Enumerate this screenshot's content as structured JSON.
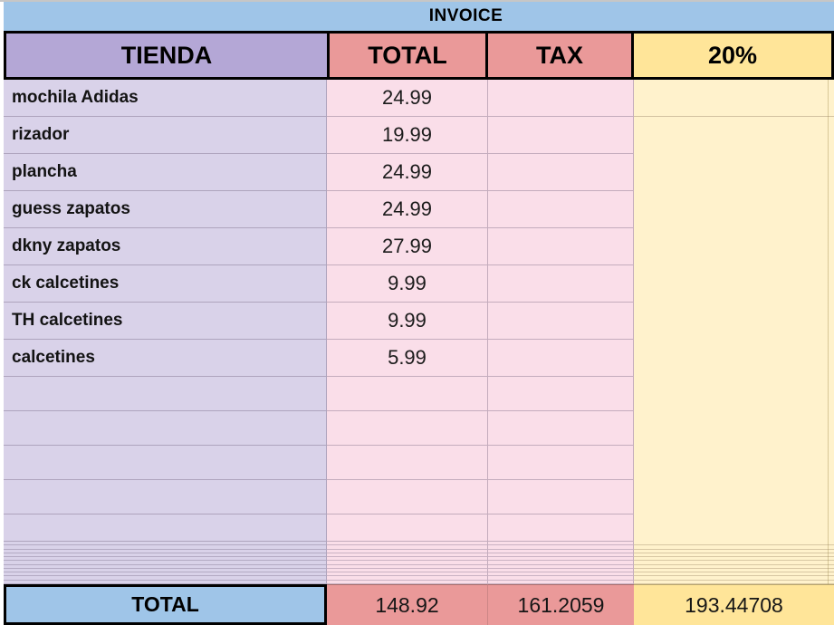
{
  "title": "INVOICE",
  "table": {
    "columns": [
      {
        "label": "TIENDA"
      },
      {
        "label": "TOTAL"
      },
      {
        "label": "TAX"
      },
      {
        "label": "20%"
      }
    ],
    "rows": [
      {
        "item": "mochila Adidas",
        "total": "24.99",
        "tax": "",
        "pct": ""
      },
      {
        "item": "rizador",
        "total": "19.99",
        "tax": "",
        "pct": ""
      },
      {
        "item": "plancha",
        "total": "24.99",
        "tax": "",
        "pct": ""
      },
      {
        "item": "guess zapatos",
        "total": "24.99",
        "tax": "",
        "pct": ""
      },
      {
        "item": "dkny zapatos",
        "total": "27.99",
        "tax": "",
        "pct": ""
      },
      {
        "item": "ck calcetines",
        "total": "9.99",
        "tax": "",
        "pct": ""
      },
      {
        "item": "TH calcetines",
        "total": "9.99",
        "tax": "",
        "pct": ""
      },
      {
        "item": "calcetines",
        "total": "5.99",
        "tax": "",
        "pct": ""
      }
    ],
    "empty_row_count": 5,
    "squished_row_count": 11,
    "totals": {
      "label": "TOTAL",
      "total": "148.92",
      "tax": "161.2059",
      "pct": "193.44708"
    }
  },
  "colors": {
    "banner_blue": "#9fc5e8",
    "header_purple": "#b4a7d6",
    "header_salmon": "#ea9999",
    "header_yellow": "#ffe599",
    "body_lavender": "#d9d2e9",
    "body_pink": "#fadee9",
    "body_yellow": "#fff2cc"
  }
}
